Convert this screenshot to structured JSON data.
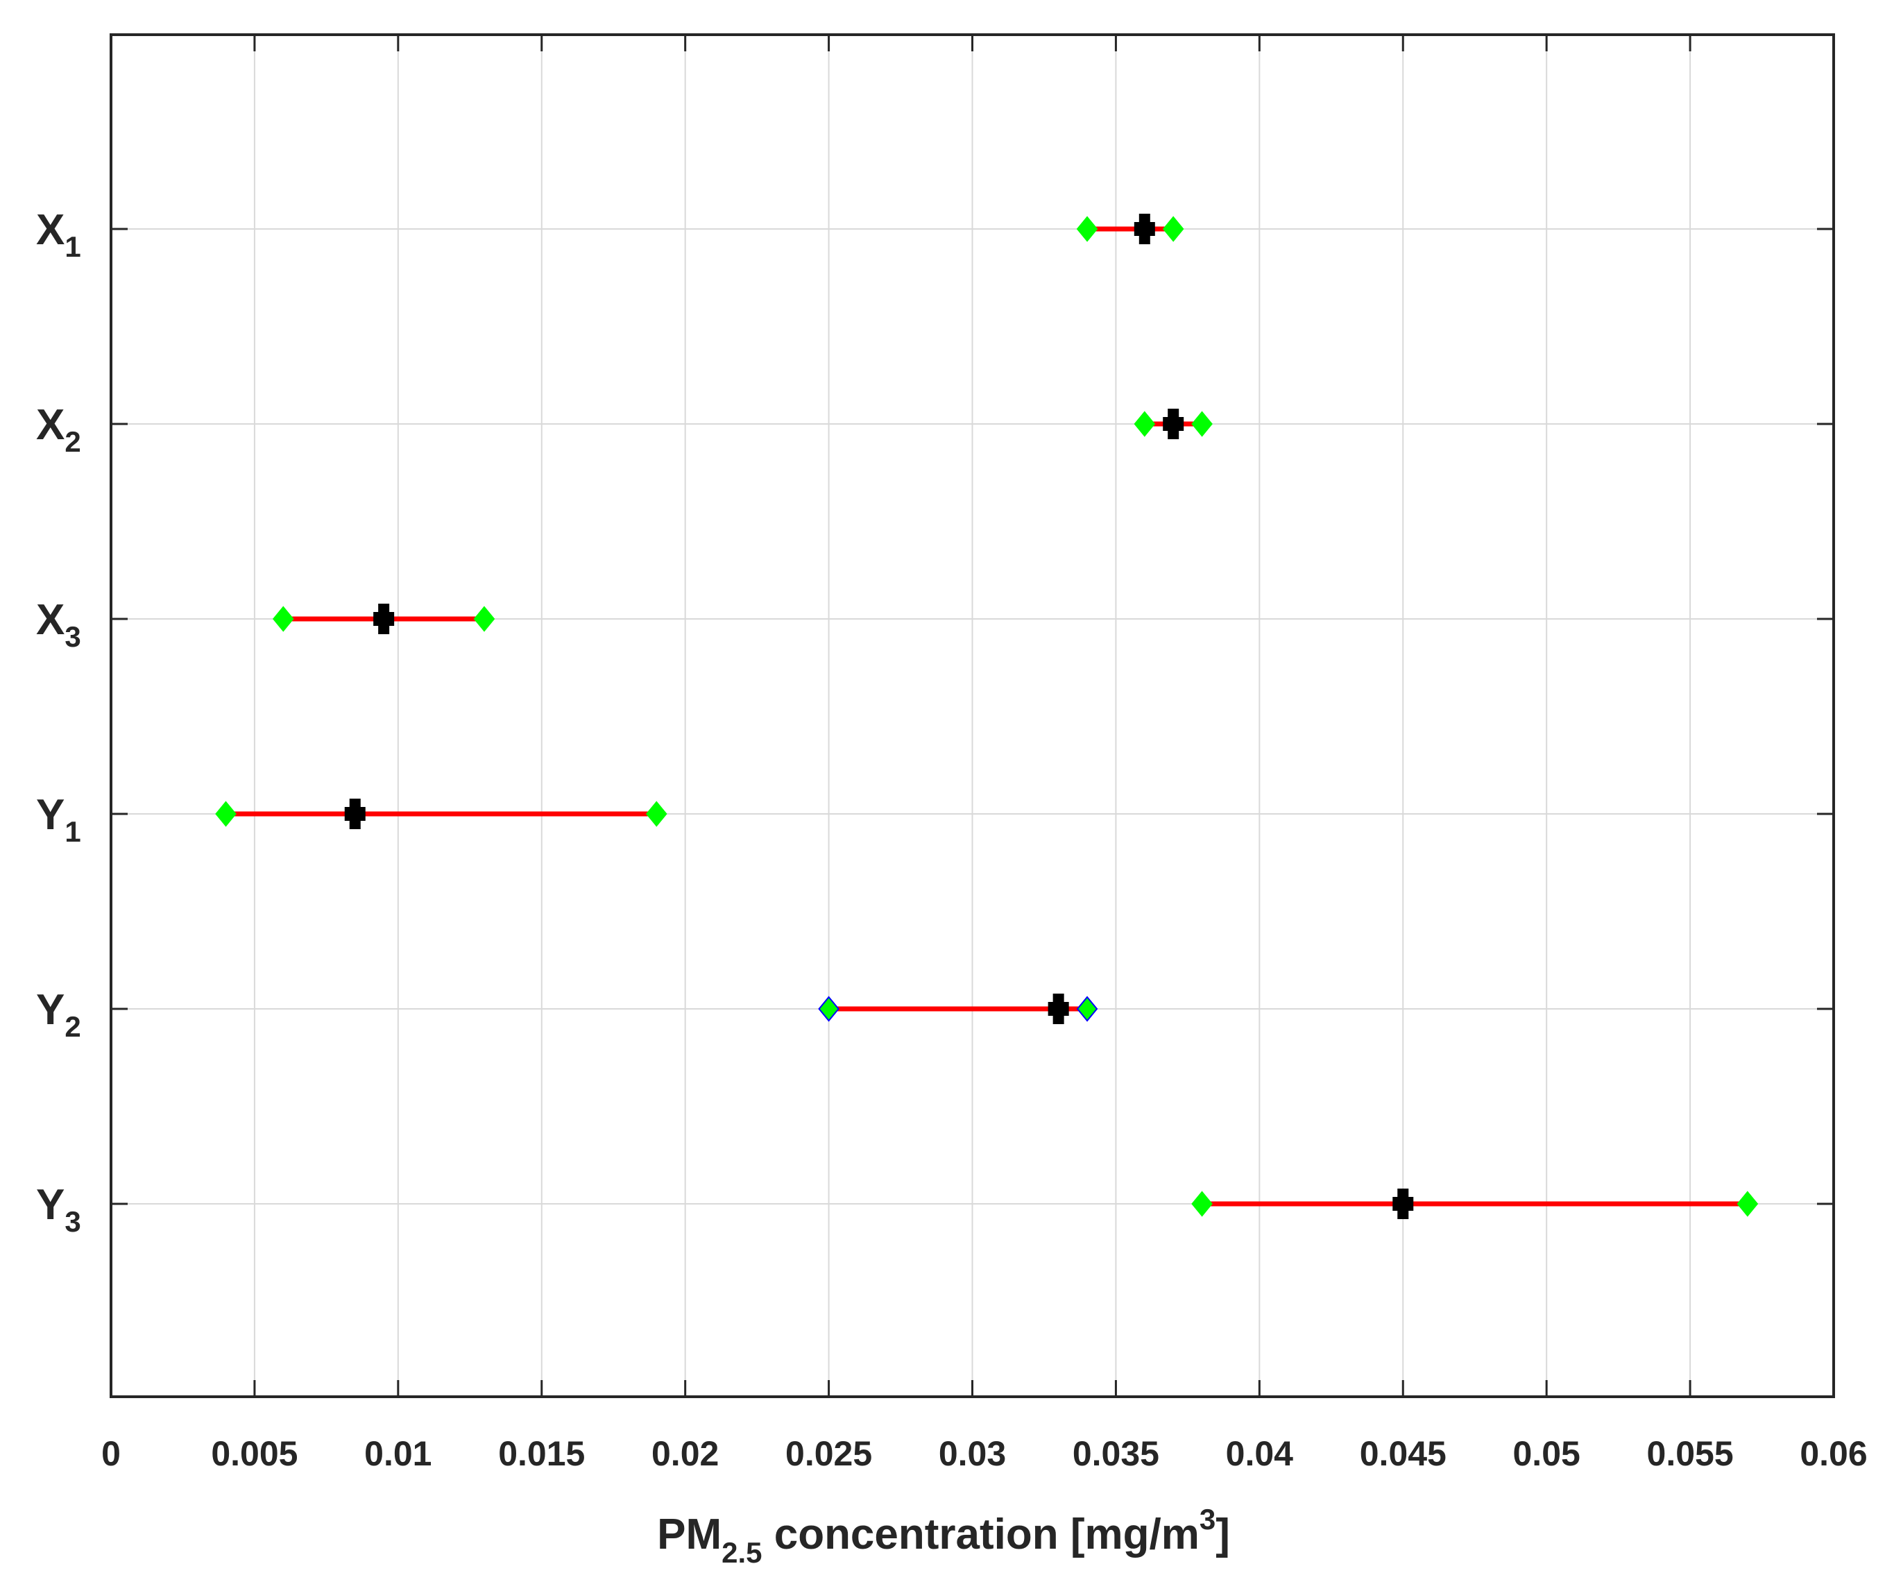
{
  "chart_data": {
    "type": "interval",
    "xlim": [
      0,
      0.06
    ],
    "x_ticks": [
      "0",
      "0.005",
      "0.01",
      "0.015",
      "0.02",
      "0.025",
      "0.03",
      "0.035",
      "0.04",
      "0.045",
      "0.05",
      "0.055",
      "0.06"
    ],
    "x_tick_values": [
      0,
      0.005,
      0.01,
      0.015,
      0.02,
      0.025,
      0.03,
      0.035,
      0.04,
      0.045,
      0.05,
      0.055,
      0.06
    ],
    "xlabel": {
      "main": "PM",
      "subscript": "2.5",
      "rest": " concentration [mg/m",
      "superscript": "3",
      "end": "]"
    },
    "grid": true,
    "categories": [
      {
        "letter": "X",
        "index": "1",
        "low": 0.034,
        "mid": 0.036,
        "high": 0.037,
        "end_marker_edge": "#00ff00"
      },
      {
        "letter": "X",
        "index": "2",
        "low": 0.036,
        "mid": 0.037,
        "high": 0.038,
        "end_marker_edge": "#00ff00"
      },
      {
        "letter": "X",
        "index": "3",
        "low": 0.006,
        "mid": 0.0095,
        "high": 0.013,
        "end_marker_edge": "#00ff00"
      },
      {
        "letter": "Y",
        "index": "1",
        "low": 0.004,
        "mid": 0.0085,
        "high": 0.019,
        "end_marker_edge": "#00ff00"
      },
      {
        "letter": "Y",
        "index": "2",
        "low": 0.025,
        "mid": 0.033,
        "high": 0.034,
        "end_marker_edge": "#0000ff"
      },
      {
        "letter": "Y",
        "index": "3",
        "low": 0.038,
        "mid": 0.045,
        "high": 0.057,
        "end_marker_edge": "#00ff00"
      }
    ],
    "colors": {
      "range_line": "#ff0000",
      "end_marker": "#00ff00",
      "center_marker": "#000000"
    }
  }
}
